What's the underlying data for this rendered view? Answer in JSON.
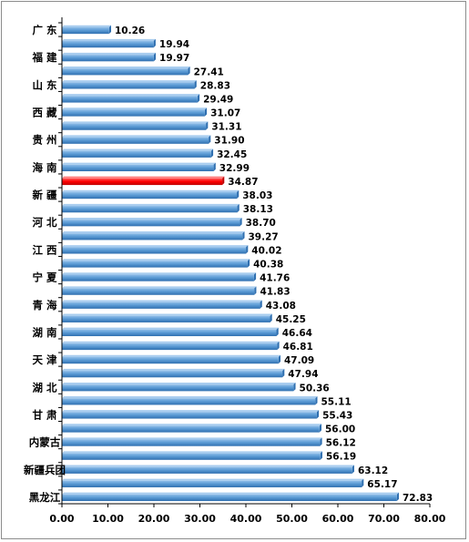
{
  "chart_data": {
    "type": "bar",
    "orientation": "horizontal",
    "categories": [
      "广 东",
      "",
      "福 建",
      "",
      "山 东",
      "",
      "西 藏",
      "",
      "贵 州",
      "",
      "海 南",
      "",
      "新 疆",
      "",
      "河 北",
      "",
      "江 西",
      "",
      "宁 夏",
      "",
      "青 海",
      "",
      "湖 南",
      "",
      "天 津",
      "",
      "湖 北",
      "",
      "甘 肃",
      "",
      "内蒙古",
      "",
      "新疆兵团",
      "",
      "黑龙江"
    ],
    "values": [
      10.26,
      19.94,
      19.97,
      27.41,
      28.83,
      29.49,
      31.07,
      31.31,
      31.9,
      32.45,
      32.99,
      34.87,
      38.03,
      38.13,
      38.7,
      39.27,
      40.02,
      40.38,
      41.76,
      41.83,
      43.08,
      45.25,
      46.64,
      46.81,
      47.09,
      47.94,
      50.36,
      55.11,
      55.43,
      56.0,
      56.12,
      56.19,
      63.12,
      65.17,
      72.83
    ],
    "data_labels": [
      "10.26",
      "19.94",
      "19.97",
      "27.41",
      "28.83",
      "29.49",
      "31.07",
      "31.31",
      "31.90",
      "32.45",
      "32.99",
      "34.87",
      "38.03",
      "38.13",
      "38.70",
      "39.27",
      "40.02",
      "40.38",
      "41.76",
      "41.83",
      "43.08",
      "45.25",
      "46.64",
      "46.81",
      "47.09",
      "47.94",
      "50.36",
      "55.11",
      "55.43",
      "56.00",
      "56.12",
      "56.19",
      "63.12",
      "65.17",
      "72.83"
    ],
    "highlight_index": 11,
    "xlim": [
      0,
      80
    ],
    "xticks": [
      "0.00",
      "10.00",
      "20.00",
      "30.00",
      "40.00",
      "50.00",
      "60.00",
      "70.00",
      "80.00"
    ],
    "xtick_values": [
      0,
      10,
      20,
      30,
      40,
      50,
      60,
      70,
      80
    ],
    "grid": false,
    "legend": "none",
    "title": "",
    "xlabel": "",
    "ylabel": "",
    "colors": {
      "bar": "#5b9bd5",
      "bar_dark": "#2f6fb0",
      "bar_light": "#8fbde8",
      "highlight": "#ff0000",
      "highlight_dark": "#c00000",
      "axis": "#000000",
      "frame": "#8c8c8c"
    }
  }
}
